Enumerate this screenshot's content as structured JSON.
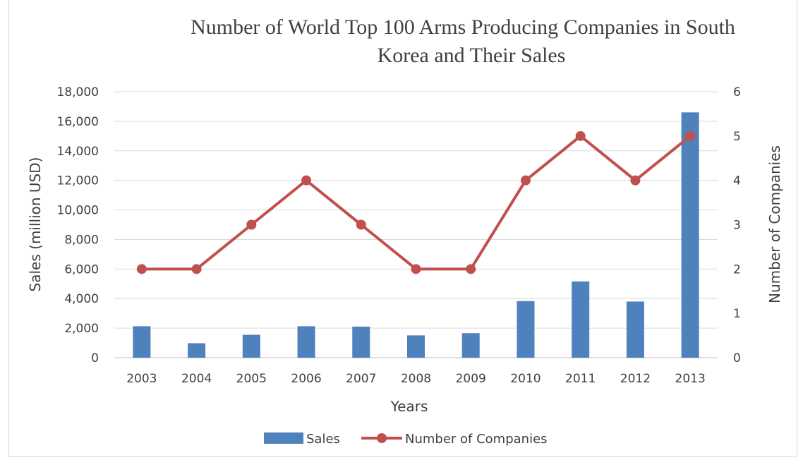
{
  "chart_data": {
    "type": "bar",
    "title_lines": [
      "Number of World Top 100 Arms Producing Companies in South",
      "Korea and Their Sales"
    ],
    "xlabel": "Years",
    "ylabel": "Sales (million USD)",
    "y2label": "Number of Companies",
    "categories": [
      "2003",
      "2004",
      "2005",
      "2006",
      "2007",
      "2008",
      "2009",
      "2010",
      "2011",
      "2012",
      "2013"
    ],
    "ylim": [
      0,
      18000
    ],
    "y_ticks": [
      "0",
      "2,000",
      "4,000",
      "6,000",
      "8,000",
      "10,000",
      "12,000",
      "14,000",
      "16,000",
      "18,000"
    ],
    "y2lim": [
      0,
      6
    ],
    "y2_ticks": [
      "0",
      "1",
      "2",
      "3",
      "4",
      "5",
      "6"
    ],
    "grid": true,
    "legend_position": "bottom",
    "series": [
      {
        "name": "Sales",
        "type": "bar",
        "axis": "left",
        "color": "#4f81bd",
        "values": [
          2130,
          980,
          1550,
          2130,
          2100,
          1510,
          1660,
          3830,
          5160,
          3800,
          16600
        ]
      },
      {
        "name": "Number of Companies",
        "type": "line",
        "axis": "right",
        "color": "#c0504d",
        "values": [
          2,
          2,
          3,
          4,
          3,
          2,
          2,
          4,
          5,
          4,
          5
        ]
      }
    ]
  }
}
